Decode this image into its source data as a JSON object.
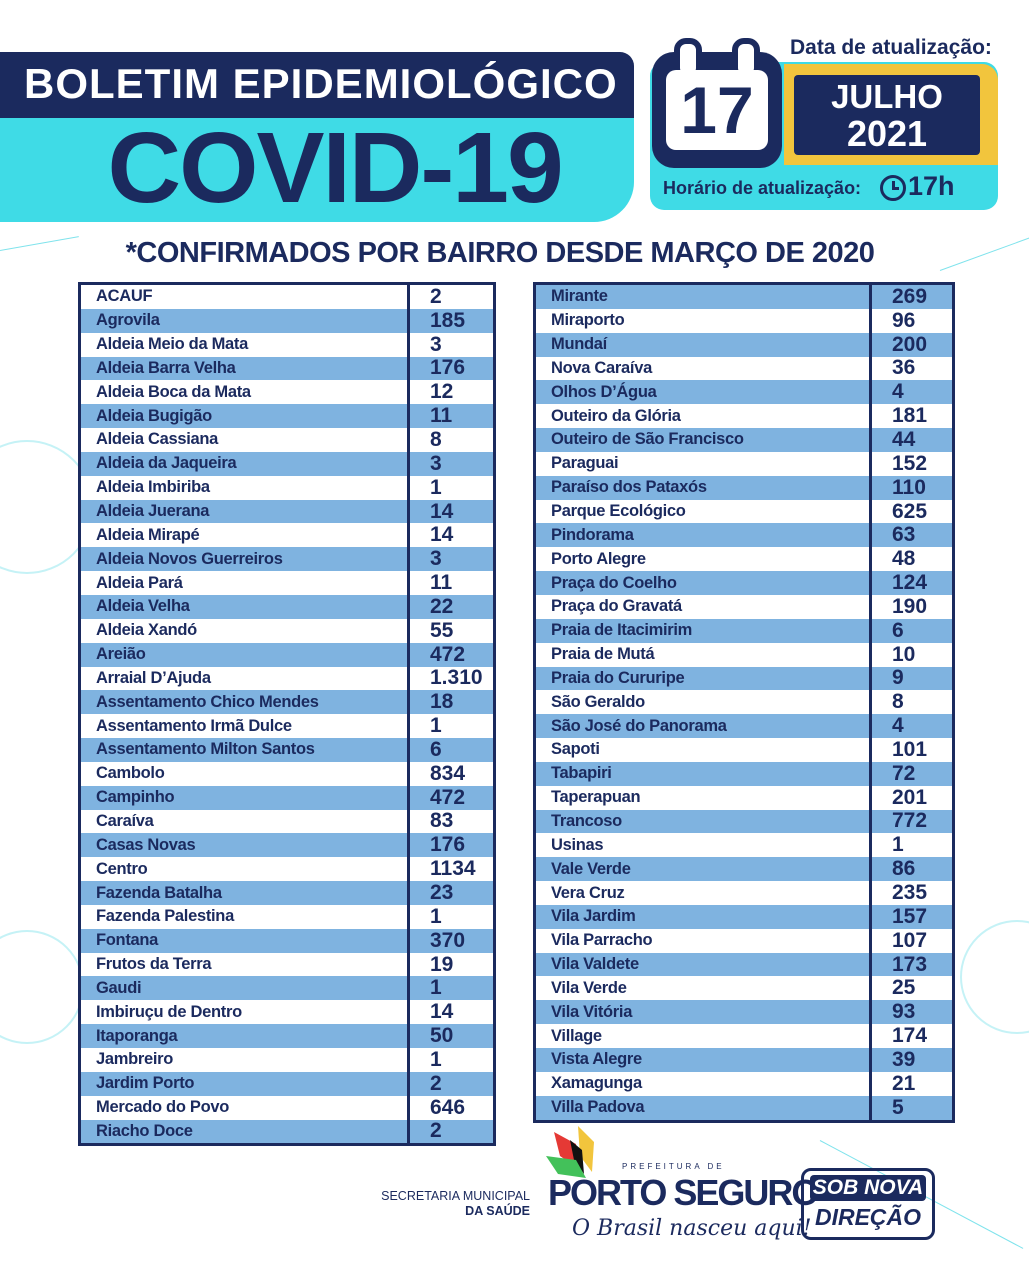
{
  "header": {
    "bulletin_title": "BOLETIM EPIDEMIOLÓGICO",
    "main_title": "COVID-19",
    "date_label": "Data de atualização:",
    "day": "17",
    "month": "JULHO",
    "year": "2021",
    "time_label": "Horário de atualização:",
    "time_value": "17h",
    "clock_icon": "clock-icon",
    "calendar_icon": "calendar-icon"
  },
  "subtitle": "*CONFIRMADOS POR BAIRRO DESDE MARÇO DE 2020",
  "colors": {
    "navy": "#1b2a5e",
    "cyan": "#3fdbe6",
    "row_blue": "#7fb3e0",
    "yellow": "#f2c53d"
  },
  "table_left": [
    {
      "name": "ACAUF",
      "value": "2"
    },
    {
      "name": "Agrovila",
      "value": "185"
    },
    {
      "name": "Aldeia Meio da Mata",
      "value": "3"
    },
    {
      "name": "Aldeia Barra Velha",
      "value": "176"
    },
    {
      "name": "Aldeia Boca da Mata",
      "value": "12"
    },
    {
      "name": "Aldeia Bugigão",
      "value": "11"
    },
    {
      "name": "Aldeia Cassiana",
      "value": "8"
    },
    {
      "name": "Aldeia da Jaqueira",
      "value": "3"
    },
    {
      "name": "Aldeia Imbiriba",
      "value": "1"
    },
    {
      "name": "Aldeia Juerana",
      "value": "14"
    },
    {
      "name": "Aldeia Mirapé",
      "value": "14"
    },
    {
      "name": "Aldeia Novos Guerreiros",
      "value": "3"
    },
    {
      "name": "Aldeia Pará",
      "value": "11"
    },
    {
      "name": "Aldeia Velha",
      "value": "22"
    },
    {
      "name": "Aldeia Xandó",
      "value": "55"
    },
    {
      "name": "Areião",
      "value": "472"
    },
    {
      "name": "Arraial D’Ajuda",
      "value": "1.310"
    },
    {
      "name": "Assentamento Chico Mendes",
      "value": "18"
    },
    {
      "name": "Assentamento Irmã Dulce",
      "value": "1"
    },
    {
      "name": "Assentamento Milton Santos",
      "value": "6"
    },
    {
      "name": "Cambolo",
      "value": "834"
    },
    {
      "name": "Campinho",
      "value": "472"
    },
    {
      "name": "Caraíva",
      "value": "83"
    },
    {
      "name": "Casas Novas",
      "value": "176"
    },
    {
      "name": "Centro",
      "value": "1134"
    },
    {
      "name": "Fazenda Batalha",
      "value": "23"
    },
    {
      "name": "Fazenda Palestina",
      "value": "1"
    },
    {
      "name": "Fontana",
      "value": "370"
    },
    {
      "name": "Frutos da Terra",
      "value": "19"
    },
    {
      "name": "Gaudi",
      "value": "1"
    },
    {
      "name": "Imbiruçu de Dentro",
      "value": "14"
    },
    {
      "name": "Itaporanga",
      "value": "50"
    },
    {
      "name": "Jambreiro",
      "value": "1"
    },
    {
      "name": "Jardim Porto",
      "value": "2"
    },
    {
      "name": "Mercado do Povo",
      "value": "646"
    },
    {
      "name": "Riacho Doce",
      "value": "2"
    }
  ],
  "table_right": [
    {
      "name": "Mirante",
      "value": "269"
    },
    {
      "name": "Miraporto",
      "value": "96"
    },
    {
      "name": "Mundaí",
      "value": "200"
    },
    {
      "name": "Nova Caraíva",
      "value": "36"
    },
    {
      "name": "Olhos D’Água",
      "value": "4"
    },
    {
      "name": "Outeiro da Glória",
      "value": "181"
    },
    {
      "name": "Outeiro de São Francisco",
      "value": "44"
    },
    {
      "name": "Paraguai",
      "value": "152"
    },
    {
      "name": "Paraíso dos Pataxós",
      "value": "110"
    },
    {
      "name": "Parque Ecológico",
      "value": "625"
    },
    {
      "name": "Pindorama",
      "value": "63"
    },
    {
      "name": "Porto Alegre",
      "value": "48"
    },
    {
      "name": "Praça do Coelho",
      "value": "124"
    },
    {
      "name": "Praça do Gravatá",
      "value": "190"
    },
    {
      "name": "Praia de Itacimirim",
      "value": "6"
    },
    {
      "name": "Praia de Mutá",
      "value": "10"
    },
    {
      "name": "Praia do Cururipe",
      "value": "9"
    },
    {
      "name": "São Geraldo",
      "value": "8"
    },
    {
      "name": "São José do Panorama",
      "value": "4"
    },
    {
      "name": "Sapoti",
      "value": "101"
    },
    {
      "name": "Tabapiri",
      "value": "72"
    },
    {
      "name": "Taperapuan",
      "value": "201"
    },
    {
      "name": "Trancoso",
      "value": "772"
    },
    {
      "name": "Usinas",
      "value": "1"
    },
    {
      "name": "Vale Verde",
      "value": "86"
    },
    {
      "name": "Vera Cruz",
      "value": "235"
    },
    {
      "name": "Vila Jardim",
      "value": "157"
    },
    {
      "name": "Vila Parracho",
      "value": "107"
    },
    {
      "name": "Vila Valdete",
      "value": "173"
    },
    {
      "name": "Vila Verde",
      "value": "25"
    },
    {
      "name": "Vila Vitória",
      "value": "93"
    },
    {
      "name": "Village",
      "value": "174"
    },
    {
      "name": "Vista Alegre",
      "value": "39"
    },
    {
      "name": "Xamagunga",
      "value": "21"
    },
    {
      "name": "Villa Padova",
      "value": "5"
    }
  ],
  "footer": {
    "secretaria_line1": "SECRETARIA MUNICIPAL",
    "secretaria_line2": "DA SAÚDE",
    "logo_prefeitura": "PREFEITURA DE",
    "logo_name": "PORTO SEGURO",
    "logo_slogan": "O Brasil nasceu aqui!",
    "badge_top": "SOB NOVA",
    "badge_bottom": "DIREÇÃO"
  }
}
